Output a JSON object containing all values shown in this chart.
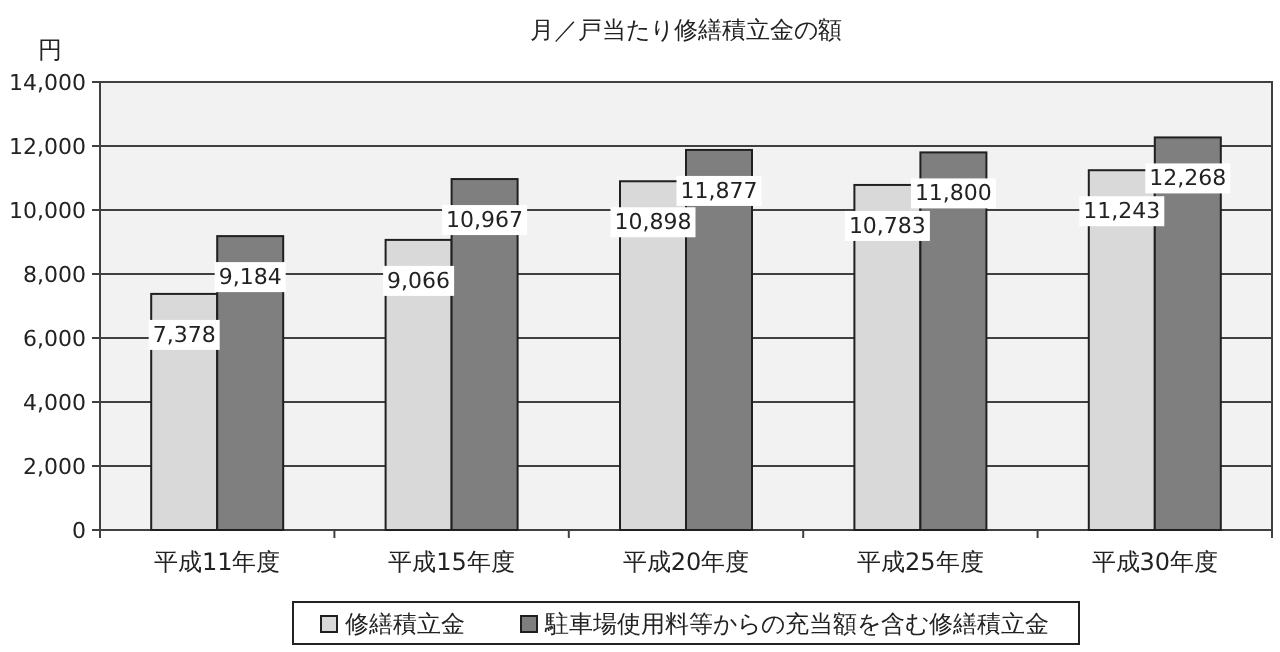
{
  "chart_data": {
    "type": "bar",
    "title": "月／戸当たり修繕積立金の額",
    "ylabel": "円",
    "categories": [
      "平成11年度",
      "平成15年度",
      "平成20年度",
      "平成25年度",
      "平成30年度"
    ],
    "series": [
      {
        "name": "修繕積立金",
        "color": "#d9d9d9",
        "values": [
          7378,
          9066,
          10898,
          10783,
          11243
        ],
        "value_labels": [
          "7,378",
          "9,066",
          "10,898",
          "10,783",
          "11,243"
        ]
      },
      {
        "name": "駐車場使用料等からの充当額を含む修繕積立金",
        "color": "#7f7f7f",
        "values": [
          9184,
          10967,
          11877,
          11800,
          12268
        ],
        "value_labels": [
          "9,184",
          "10,967",
          "11,877",
          "11,800",
          "12,268"
        ]
      }
    ],
    "ylim": [
      0,
      14000
    ],
    "yticks": [
      0,
      {
        "value": 2000,
        "label": "2,000"
      },
      {
        "value": 4000,
        "label": "4,000"
      },
      {
        "value": 6000,
        "label": "6,000"
      },
      {
        "value": 8000,
        "label": "8,000"
      },
      {
        "value": 10000,
        "label": "10,000"
      },
      {
        "value": 12000,
        "label": "12,000"
      },
      {
        "value": 14000,
        "label": "14,000"
      }
    ],
    "grid": "y",
    "legend": "bottom"
  }
}
